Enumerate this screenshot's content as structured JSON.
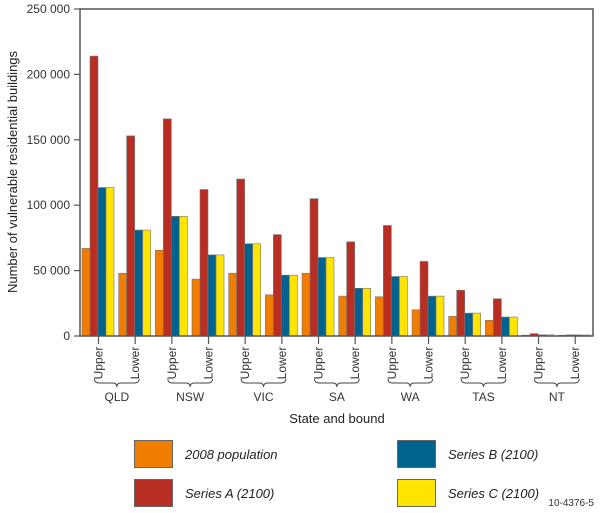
{
  "chart_data": {
    "type": "bar",
    "title": "",
    "xlabel": "State and bound",
    "ylabel": "Number of vulnerable residential buildings",
    "ylim": [
      0,
      250000
    ],
    "yticks": [
      0,
      50000,
      100000,
      150000,
      200000,
      250000
    ],
    "ytick_labels": [
      "0",
      "50 000",
      "100 000",
      "150 000",
      "200 000",
      "250 000"
    ],
    "grid": false,
    "legend_position": "bottom",
    "groups": [
      "QLD",
      "NSW",
      "VIC",
      "SA",
      "WA",
      "TAS",
      "NT"
    ],
    "bounds": [
      "Upper",
      "Lower"
    ],
    "categories": [
      "QLD Upper",
      "QLD Lower",
      "NSW Upper",
      "NSW Lower",
      "VIC Upper",
      "VIC Lower",
      "SA Upper",
      "SA Lower",
      "WA Upper",
      "WA Lower",
      "TAS Upper",
      "TAS Lower",
      "NT Upper",
      "NT Lower"
    ],
    "series": [
      {
        "name": "2008 population",
        "color": "#F07C00",
        "values": [
          67000,
          48000,
          65500,
          43500,
          48000,
          31500,
          48000,
          30500,
          30000,
          20000,
          15000,
          12000,
          300,
          200
        ]
      },
      {
        "name": "Series A (2100)",
        "color": "#B92E22",
        "values": [
          214000,
          153000,
          166000,
          112000,
          120000,
          77500,
          105000,
          72000,
          84500,
          57000,
          35000,
          28500,
          1800,
          900
        ]
      },
      {
        "name": "Series B (2100)",
        "color": "#00628E",
        "values": [
          113500,
          81000,
          91500,
          62000,
          70500,
          46500,
          60000,
          36500,
          45500,
          30500,
          17500,
          14500,
          900,
          800
        ]
      },
      {
        "name": "Series C (2100)",
        "color": "#FFE400",
        "values": [
          113500,
          81000,
          91500,
          62000,
          70500,
          46500,
          60000,
          36500,
          45500,
          30500,
          17500,
          14500,
          900,
          800
        ]
      }
    ]
  },
  "legend": [
    {
      "label": "2008 population",
      "color": "#F07C00"
    },
    {
      "label": "Series B (2100)",
      "color": "#00628E"
    },
    {
      "label": "Series A (2100)",
      "color": "#B92E22"
    },
    {
      "label": "Series C (2100)",
      "color": "#FFE400"
    }
  ],
  "figure_id": "10-4376-5"
}
